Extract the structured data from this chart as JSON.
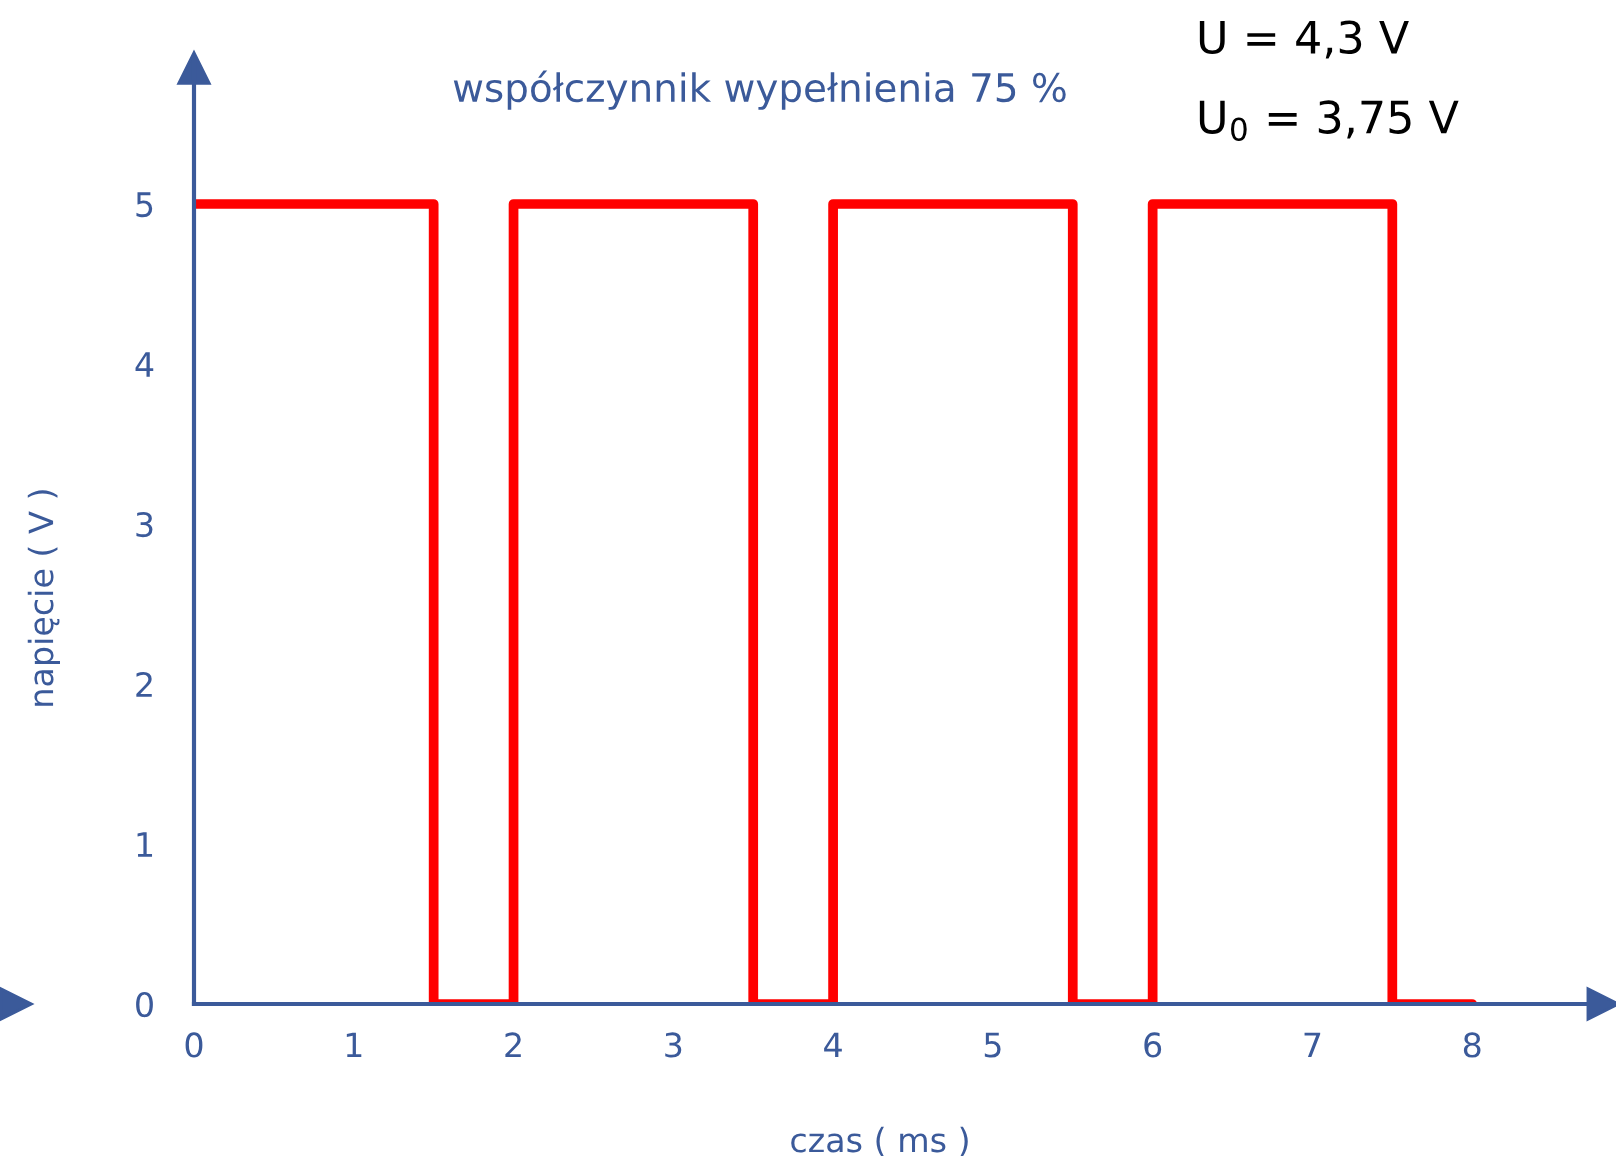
{
  "chart_data": {
    "type": "step",
    "xlabel": "czas ( ms )",
    "ylabel": "napięcie ( V )",
    "annotations": [
      "współczynnik wypełnienia 75 %",
      "U = 4,3 V",
      "U$_{0}$ = 3,75 V"
    ],
    "x": [
      0,
      1.5,
      2,
      3.5,
      4,
      5.5,
      6,
      7.5,
      8
    ],
    "series": [
      {
        "color": "#ff0000",
        "values": [
          5,
          0,
          5,
          0,
          5,
          0,
          5,
          0,
          0
        ]
      }
    ],
    "xlim": [
      0,
      8.9
    ],
    "ylim": [
      0,
      5.9
    ],
    "xticks": [
      0,
      1,
      2,
      3,
      4,
      5,
      6,
      7,
      8
    ],
    "yticks": [
      0,
      1,
      2,
      3,
      4,
      5
    ],
    "grid": false,
    "legend": false
  }
}
